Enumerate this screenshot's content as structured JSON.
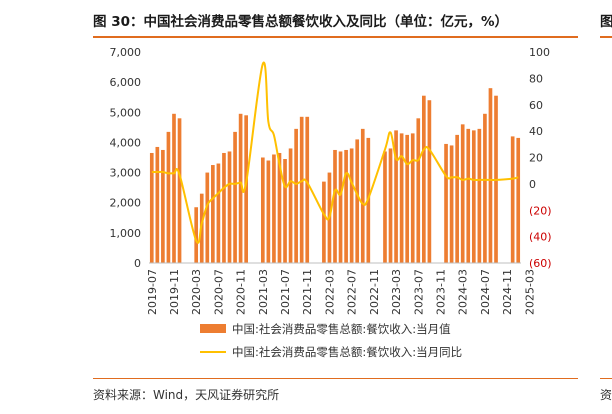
{
  "header": {
    "title": "图 30：中国社会消费品零售总额餐饮收入及同比（单位：亿元，%）",
    "edge_glyph": "图"
  },
  "footer": {
    "source": "资料来源：Wind，天风证券研究所",
    "edge_glyph": "资"
  },
  "colors": {
    "bar": "#ed7d31",
    "line": "#ffc000",
    "accent_rule": "#e06c1f",
    "negative_tick": "#cc0000"
  },
  "chart_data": {
    "type": "bar",
    "x_tick_labels": [
      "2019-07",
      "2019-11",
      "2020-03",
      "2020-07",
      "2020-11",
      "2021-03",
      "2021-07",
      "2021-11",
      "2022-03",
      "2022-07",
      "2022-11",
      "2023-03",
      "2023-07",
      "2023-11",
      "2024-03",
      "2024-07",
      "2024-11",
      "2025-03"
    ],
    "y_left": {
      "range": [
        0,
        7000
      ],
      "ticks": [
        "0",
        "1,000",
        "2,000",
        "3,000",
        "4,000",
        "5,000",
        "6,000",
        "7,000"
      ]
    },
    "y_right": {
      "range": [
        -60,
        100
      ],
      "ticks": [
        "(60)",
        "(40)",
        "(20)",
        "0",
        "20",
        "40",
        "60",
        "80",
        "100"
      ]
    },
    "grid": false,
    "legend_position": "bottom",
    "series": [
      {
        "name": "中国:社会消费品零售总额:餐饮收入:当月值",
        "type": "bar",
        "axis": "left",
        "values": [
          3650,
          3850,
          3750,
          4350,
          4950,
          4800,
          null,
          null,
          1850,
          2300,
          3000,
          3250,
          3300,
          3650,
          3700,
          4350,
          4950,
          4900,
          null,
          null,
          3500,
          3400,
          3600,
          3650,
          3450,
          3800,
          4450,
          4850,
          4850,
          null,
          null,
          2700,
          3000,
          3750,
          3700,
          3750,
          3800,
          4100,
          4450,
          4150,
          null,
          null,
          3700,
          3800,
          4400,
          4300,
          4250,
          4300,
          4800,
          5550,
          5400,
          null,
          null,
          3950,
          3900,
          4250,
          4600,
          4450,
          4400,
          4450,
          4950,
          5800,
          5550,
          null,
          null,
          4200,
          4150
        ]
      },
      {
        "name": "中国:社会消费品零售总额:餐饮收入:当月同比",
        "type": "line",
        "axis": "right",
        "values": [
          9,
          9,
          9,
          8,
          8,
          7,
          null,
          null,
          -43,
          -30,
          -16,
          -11,
          -7,
          -3,
          0,
          0,
          1,
          1,
          null,
          null,
          91,
          47,
          37,
          15,
          -2,
          2,
          0,
          2,
          1,
          null,
          null,
          -23,
          -25,
          -5,
          -8,
          8,
          1,
          -8,
          -15,
          -11,
          null,
          null,
          26,
          39,
          19,
          21,
          15,
          18,
          18,
          26,
          26,
          null,
          null,
          6,
          5,
          5,
          3,
          4,
          3,
          3,
          3,
          3,
          3,
          null,
          null,
          4,
          5
        ]
      }
    ]
  }
}
